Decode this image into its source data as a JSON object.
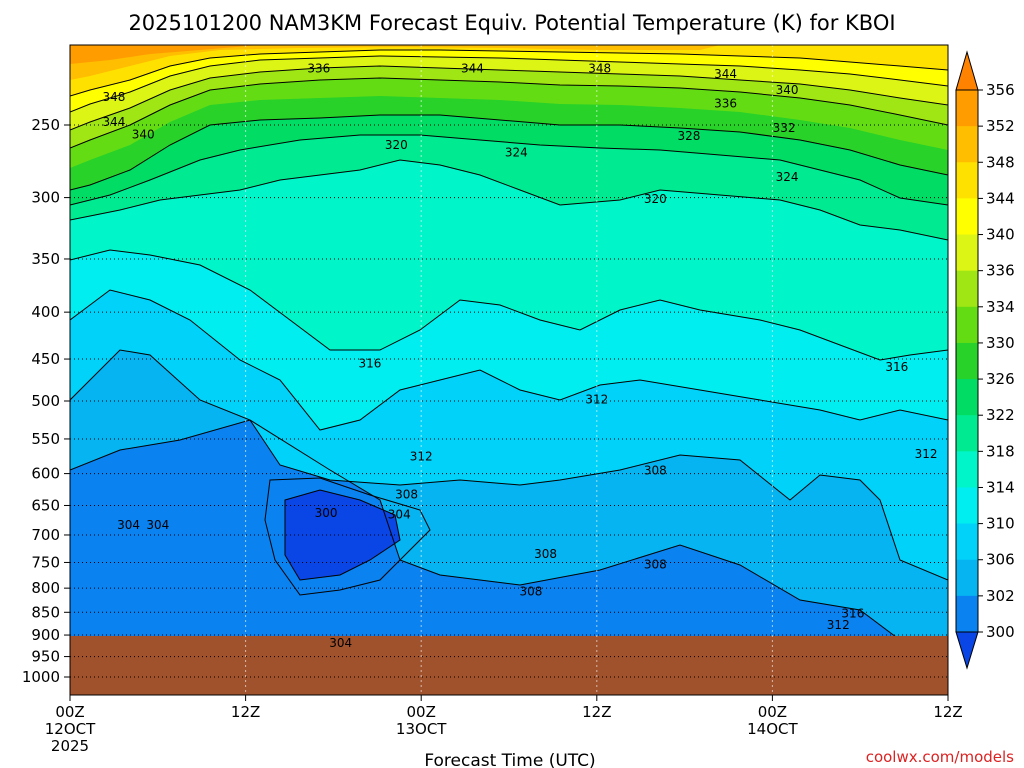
{
  "chart_data": {
    "type": "contour",
    "title": "2025101200 NAM3KM Forecast Equiv. Potential Temperature (K) for KBOI",
    "xlabel": "Forecast Time (UTC)",
    "ylabel": "",
    "watermark": "coolwx.com/models",
    "x_ticks": [
      {
        "l1": "00Z",
        "l2": "12OCT",
        "l3": "2025",
        "h": 0
      },
      {
        "l1": "12Z",
        "l2": "",
        "l3": "",
        "h": 12
      },
      {
        "l1": "00Z",
        "l2": "13OCT",
        "l3": "",
        "h": 24
      },
      {
        "l1": "12Z",
        "l2": "",
        "l3": "",
        "h": 36
      },
      {
        "l1": "00Z",
        "l2": "14OCT",
        "l3": "",
        "h": 48
      },
      {
        "l1": "12Z",
        "l2": "",
        "l3": "",
        "h": 60
      }
    ],
    "x_range_hours": [
      0,
      60
    ],
    "y_ticks": [
      "250",
      "300",
      "350",
      "400",
      "450",
      "500",
      "550",
      "600",
      "650",
      "700",
      "750",
      "800",
      "850",
      "900",
      "950",
      "1000"
    ],
    "y_range_hpa": [
      200,
      1050
    ],
    "surface_pressure_hpa": 910,
    "terrain_color": "#a0522d",
    "colorbar": {
      "levels": [
        300,
        302,
        306,
        310,
        314,
        318,
        322,
        326,
        330,
        334,
        336,
        340,
        344,
        348,
        352,
        356
      ],
      "colors": [
        "#0a46e6",
        "#0a82f0",
        "#05b4f0",
        "#00d2fa",
        "#00eef0",
        "#00f5c8",
        "#00eb91",
        "#00dc64",
        "#28d228",
        "#64dc14",
        "#a0e614",
        "#dcf514",
        "#ffff00",
        "#ffe100",
        "#ffbe00",
        "#ff9c00",
        "#ff8200"
      ]
    },
    "contour_labels": [
      {
        "text": "336",
        "h": 17,
        "p": 217
      },
      {
        "text": "344",
        "h": 27.5,
        "p": 217
      },
      {
        "text": "348",
        "h": 36.2,
        "p": 217
      },
      {
        "text": "344",
        "h": 44.8,
        "p": 220
      },
      {
        "text": "340",
        "h": 49,
        "p": 229
      },
      {
        "text": "348",
        "h": 3,
        "p": 233
      },
      {
        "text": "336",
        "h": 44.8,
        "p": 237
      },
      {
        "text": "344",
        "h": 3,
        "p": 248
      },
      {
        "text": "340",
        "h": 5,
        "p": 256
      },
      {
        "text": "332",
        "h": 48.8,
        "p": 252
      },
      {
        "text": "320",
        "h": 22.3,
        "p": 263
      },
      {
        "text": "328",
        "h": 42.3,
        "p": 257
      },
      {
        "text": "324",
        "h": 30.5,
        "p": 268
      },
      {
        "text": "324",
        "h": 49,
        "p": 285
      },
      {
        "text": "320",
        "h": 40,
        "p": 301
      },
      {
        "text": "316",
        "h": 20.5,
        "p": 455
      },
      {
        "text": "316",
        "h": 56.5,
        "p": 459
      },
      {
        "text": "312",
        "h": 36,
        "p": 498
      },
      {
        "text": "312",
        "h": 24,
        "p": 575
      },
      {
        "text": "312",
        "h": 58.5,
        "p": 571
      },
      {
        "text": "308",
        "h": 40,
        "p": 595
      },
      {
        "text": "308",
        "h": 23,
        "p": 632
      },
      {
        "text": "300",
        "h": 17.5,
        "p": 662
      },
      {
        "text": "304",
        "h": 22.5,
        "p": 665
      },
      {
        "text": "304",
        "h": 4,
        "p": 683
      },
      {
        "text": "304",
        "h": 6,
        "p": 683
      },
      {
        "text": "308",
        "h": 32.5,
        "p": 734
      },
      {
        "text": "308",
        "h": 40,
        "p": 754
      },
      {
        "text": "308",
        "h": 31.5,
        "p": 807
      },
      {
        "text": "316",
        "h": 53.5,
        "p": 853
      },
      {
        "text": "312",
        "h": 52.5,
        "p": 878
      },
      {
        "text": "304",
        "h": 18.5,
        "p": 918
      }
    ]
  }
}
